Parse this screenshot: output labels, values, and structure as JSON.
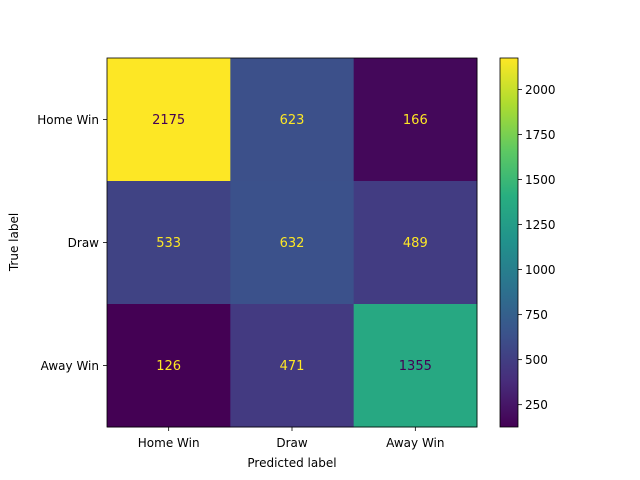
{
  "chart_data": {
    "type": "heatmap",
    "title": "",
    "xlabel": "Predicted label",
    "ylabel": "True label",
    "row_labels": [
      "Home Win",
      "Draw",
      "Away Win"
    ],
    "col_labels": [
      "Home Win",
      "Draw",
      "Away Win"
    ],
    "values": [
      [
        2175,
        623,
        166
      ],
      [
        533,
        632,
        489
      ],
      [
        126,
        471,
        1355
      ]
    ],
    "colormap": "viridis",
    "vmin": 126,
    "vmax": 2175,
    "colorbar_ticks": [
      250,
      500,
      750,
      1000,
      1250,
      1500,
      1750,
      2000
    ],
    "text_color_dark": "#440154",
    "text_color_light": "#fde725"
  }
}
